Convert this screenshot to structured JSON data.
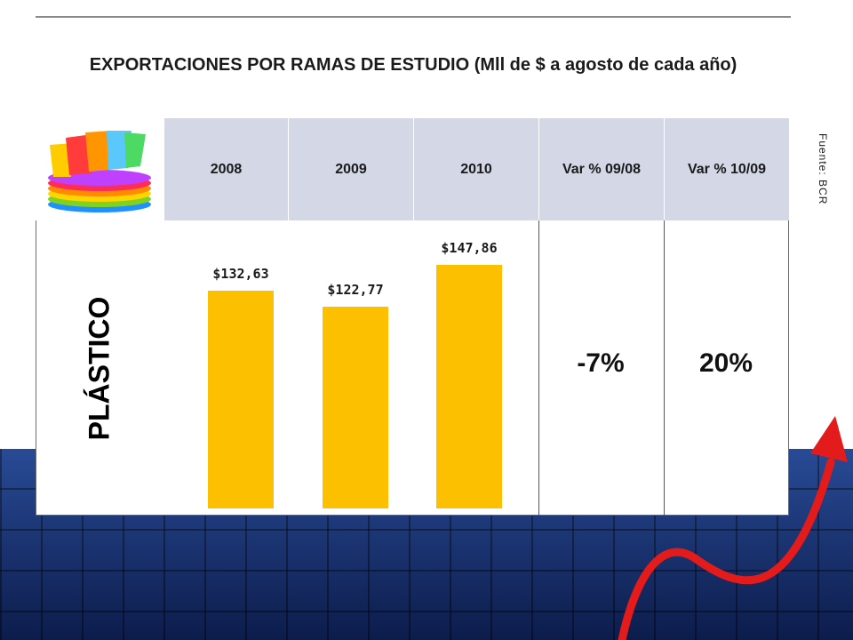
{
  "title": "EXPORTACIONES POR RAMAS DE ESTUDIO (Mll de $ a agosto de cada año)",
  "source": "Fuente: BCR",
  "header": {
    "image_icon": "stacked-colorful-plastic-cups-icon",
    "columns": [
      "2008",
      "2009",
      "2010",
      "Var % 09/08",
      "Var % 10/09"
    ]
  },
  "row": {
    "label": "PLÁSTICO",
    "variations": [
      "-7%",
      "20%"
    ]
  },
  "colors": {
    "bar": "#fcc000",
    "header_bg": "#d3d7e6",
    "background_grid": "#1b3f8f",
    "arrow": "#e31b1b"
  },
  "chart_data": {
    "type": "bar",
    "categories": [
      "2008",
      "2009",
      "2010"
    ],
    "values": [
      132.63,
      122.77,
      147.86
    ],
    "value_labels": [
      "$132,63",
      "$122,77",
      "$147,86"
    ],
    "title": "EXPORTACIONES POR RAMAS DE ESTUDIO (Mll de $ a agosto de cada año)",
    "xlabel": "",
    "ylabel": "",
    "grid": false
  }
}
